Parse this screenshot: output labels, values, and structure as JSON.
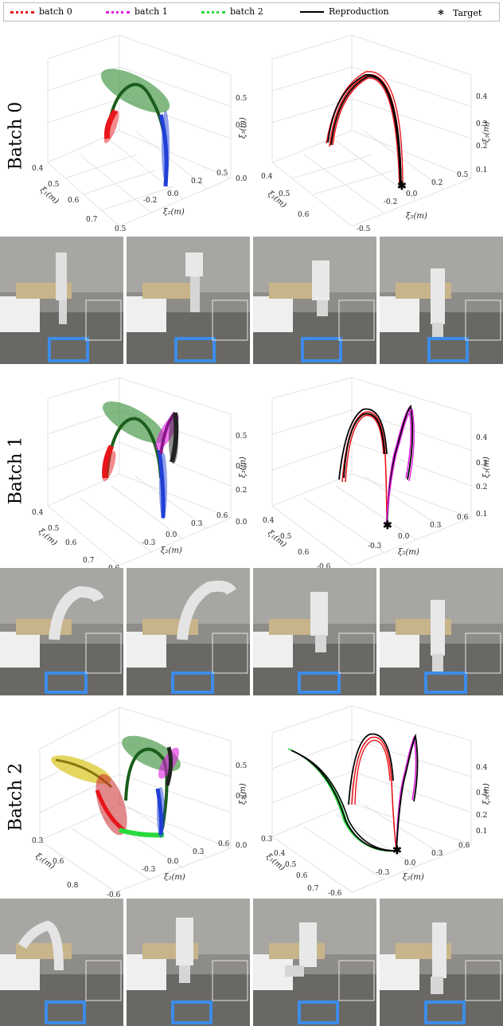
{
  "legend": {
    "batch0": "batch 0",
    "batch1": "batch 1",
    "batch2": "batch 2",
    "reproduction": "Reproduction",
    "target": "Target",
    "target_symbol": "∗"
  },
  "rows": [
    {
      "label": "Batch 0"
    },
    {
      "label": "Batch 1"
    },
    {
      "label": "Batch 2"
    }
  ],
  "axes": {
    "x1_label": "ξ₁(m)",
    "x2_label": "ξ₂(m)",
    "x3_label": "ξ₃(m)",
    "b0_left": {
      "x1_ticks": [
        "0.4",
        "0.5",
        "0.6",
        "0.7"
      ],
      "x2_ticks": [
        "0.5",
        "-0.2",
        "0.0",
        "0.2",
        "0.5"
      ],
      "x3_ticks": [
        "0.5",
        "0.3",
        "0.0",
        "0.3"
      ]
    },
    "b0_right": {
      "x1_ticks": [
        "0.4",
        "0.5",
        "0.6"
      ],
      "x2_ticks": [
        "-0.5",
        "-0.2",
        "0.0",
        "0.2",
        "0.5"
      ],
      "x3_ticks": [
        "0.4",
        "0.3",
        "0.2",
        "0.1"
      ]
    },
    "b1_left": {
      "x1_ticks": [
        "0.4",
        "0.5",
        "0.6",
        "0.7"
      ],
      "x2_ticks": [
        "0.6",
        "-0.3",
        "0.0",
        "0.3",
        "0.6"
      ],
      "x3_ticks": [
        "0.5",
        "0.3",
        "0.2",
        "0.0"
      ]
    },
    "b1_right": {
      "x1_ticks": [
        "0.4",
        "0.5",
        "0.6"
      ],
      "x2_ticks": [
        "-0.6",
        "-0.3",
        "0.0",
        "0.3",
        "0.6"
      ],
      "x3_ticks": [
        "0.4",
        "0.3",
        "0.2",
        "0.1"
      ]
    },
    "b2_left": {
      "x1_ticks": [
        "0.3",
        "0.6",
        "0.8"
      ],
      "x2_ticks": [
        "-0.6",
        "-0.3",
        "0.0",
        "0.3",
        "0.6"
      ],
      "x3_ticks": [
        "0.5",
        "0.3",
        "0.0"
      ]
    },
    "b2_right": {
      "x1_ticks": [
        "0.3",
        "0.4",
        "0.5",
        "0.6",
        "0.7"
      ],
      "x2_ticks": [
        "-0.6",
        "-0.3",
        "0.0",
        "0.3",
        "0.6"
      ],
      "x3_ticks": [
        "0.4",
        "0.3",
        "0.2",
        "0.1"
      ]
    }
  },
  "colors": {
    "batch0": "#e8151b",
    "batch1": "#e01ee0",
    "batch2": "#27d93a",
    "reproduction": "#000000",
    "gaussian_green": "#2e8b2e",
    "gaussian_blue": "#1f3fd6",
    "gaussian_yellow": "#d8c51c",
    "gaussian_red": "#c8282c"
  }
}
